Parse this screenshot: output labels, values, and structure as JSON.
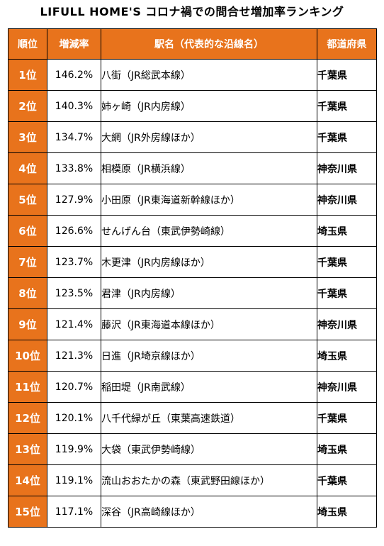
{
  "title": "LIFULL HOME'S コロナ禍での問合せ増加率ランキング",
  "colors": {
    "header_bg": "#e8731c",
    "header_text": "#ffffff"
  },
  "headers": {
    "rank": "順位",
    "rate": "増減率",
    "station": "駅名（代表的な沿線名）",
    "prefecture": "都道府県"
  },
  "rows": [
    {
      "rank": "1位",
      "rate": "146.2%",
      "station": "八街（JR総武本線）",
      "prefecture": "千葉県"
    },
    {
      "rank": "2位",
      "rate": "140.3%",
      "station": "姉ヶ崎（JR内房線）",
      "prefecture": "千葉県"
    },
    {
      "rank": "3位",
      "rate": "134.7%",
      "station": "大網（JR外房線ほか）",
      "prefecture": "千葉県"
    },
    {
      "rank": "4位",
      "rate": "133.8%",
      "station": "相模原（JR横浜線）",
      "prefecture": "神奈川県"
    },
    {
      "rank": "5位",
      "rate": "127.9%",
      "station": "小田原（JR東海道新幹線ほか）",
      "prefecture": "神奈川県"
    },
    {
      "rank": "6位",
      "rate": "126.6%",
      "station": "せんげん台（東武伊勢崎線）",
      "prefecture": "埼玉県"
    },
    {
      "rank": "7位",
      "rate": "123.7%",
      "station": "木更津（JR内房線ほか）",
      "prefecture": "千葉県"
    },
    {
      "rank": "8位",
      "rate": "123.5%",
      "station": "君津（JR内房線）",
      "prefecture": "千葉県"
    },
    {
      "rank": "9位",
      "rate": "121.4%",
      "station": "藤沢（JR東海道本線ほか）",
      "prefecture": "神奈川県"
    },
    {
      "rank": "10位",
      "rate": "121.3%",
      "station": "日進（JR埼京線ほか）",
      "prefecture": "埼玉県"
    },
    {
      "rank": "11位",
      "rate": "120.7%",
      "station": "稲田堤（JR南武線）",
      "prefecture": "神奈川県"
    },
    {
      "rank": "12位",
      "rate": "120.1%",
      "station": "八千代緑が丘（東葉高速鉄道）",
      "prefecture": "千葉県"
    },
    {
      "rank": "13位",
      "rate": "119.9%",
      "station": "大袋（東武伊勢崎線）",
      "prefecture": "埼玉県"
    },
    {
      "rank": "14位",
      "rate": "119.1%",
      "station": "流山おおたかの森（東武野田線ほか）",
      "prefecture": "千葉県"
    },
    {
      "rank": "15位",
      "rate": "117.1%",
      "station": "深谷（JR高崎線ほか）",
      "prefecture": "埼玉県"
    }
  ]
}
